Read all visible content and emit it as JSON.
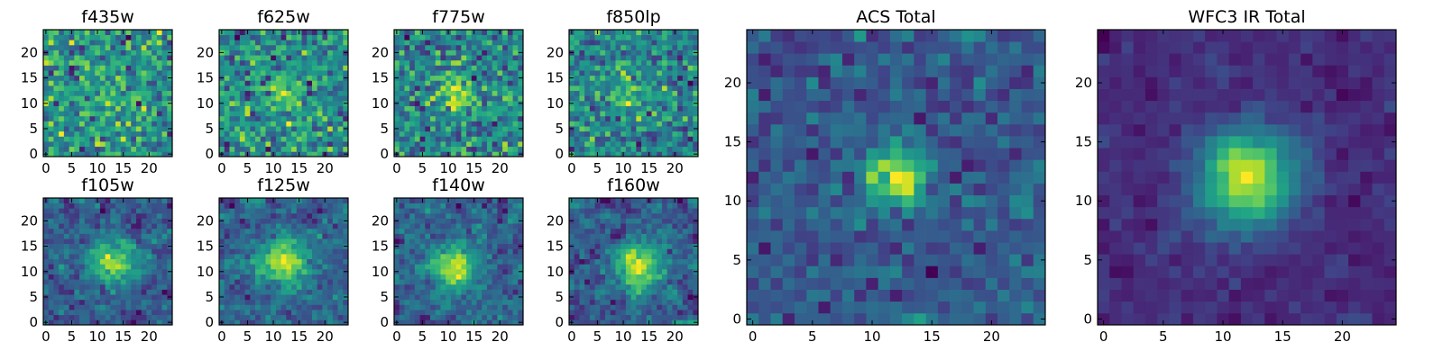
{
  "figure": {
    "colormap": "viridis",
    "panels": [
      {
        "title": "f435w",
        "seed": 11,
        "size": 25,
        "peak": [
          12,
          12
        ],
        "blob_amp": 0.35,
        "blob_sigma": 2.5,
        "noise": 1.0,
        "xticks": [
          "0",
          "5",
          "10",
          "15",
          "20"
        ],
        "yticks": [
          "0",
          "5",
          "10",
          "15",
          "20"
        ]
      },
      {
        "title": "f625w",
        "seed": 23,
        "size": 25,
        "peak": [
          12,
          12
        ],
        "blob_amp": 0.6,
        "blob_sigma": 2.5,
        "noise": 1.0,
        "xticks": [
          "0",
          "5",
          "10",
          "15",
          "20"
        ],
        "yticks": [
          "0",
          "5",
          "10",
          "15",
          "20"
        ]
      },
      {
        "title": "f775w",
        "seed": 37,
        "size": 25,
        "peak": [
          12,
          12
        ],
        "blob_amp": 0.7,
        "blob_sigma": 2.5,
        "noise": 1.0,
        "xticks": [
          "0",
          "5",
          "10",
          "15",
          "20"
        ],
        "yticks": [
          "0",
          "5",
          "10",
          "15",
          "20"
        ]
      },
      {
        "title": "f850lp",
        "seed": 41,
        "size": 25,
        "peak": [
          12,
          12
        ],
        "blob_amp": 0.6,
        "blob_sigma": 2.5,
        "noise": 1.0,
        "xticks": [
          "0",
          "5",
          "10",
          "15",
          "20"
        ],
        "yticks": [
          "0",
          "5",
          "10",
          "15",
          "20"
        ]
      },
      {
        "title": "f105w",
        "seed": 53,
        "size": 25,
        "peak": [
          13,
          12
        ],
        "blob_amp": 1.0,
        "blob_sigma": 3.0,
        "noise": 0.8,
        "smooth": true,
        "xticks": [
          "0",
          "5",
          "10",
          "15",
          "20"
        ],
        "yticks": [
          "0",
          "5",
          "10",
          "15",
          "20"
        ]
      },
      {
        "title": "f125w",
        "seed": 67,
        "size": 25,
        "peak": [
          12,
          12
        ],
        "blob_amp": 1.2,
        "blob_sigma": 3.0,
        "noise": 0.8,
        "smooth": true,
        "xticks": [
          "0",
          "5",
          "10",
          "15",
          "20"
        ],
        "yticks": [
          "0",
          "5",
          "10",
          "15",
          "20"
        ]
      },
      {
        "title": "f140w",
        "seed": 71,
        "size": 25,
        "peak": [
          11,
          11
        ],
        "blob_amp": 1.2,
        "blob_sigma": 3.0,
        "noise": 0.8,
        "smooth": true,
        "xticks": [
          "0",
          "5",
          "10",
          "15",
          "20"
        ],
        "yticks": [
          "0",
          "5",
          "10",
          "15",
          "20"
        ]
      },
      {
        "title": "f160w",
        "seed": 83,
        "size": 25,
        "peak": [
          13,
          11
        ],
        "blob_amp": 1.2,
        "blob_sigma": 3.0,
        "noise": 0.8,
        "smooth": true,
        "xticks": [
          "0",
          "5",
          "10",
          "15",
          "20"
        ],
        "yticks": [
          "0",
          "5",
          "10",
          "15",
          "20"
        ]
      },
      {
        "title": "ACS Total",
        "seed": 97,
        "size": 25,
        "peak": [
          12,
          12
        ],
        "blob_amp": 1.6,
        "blob_sigma": 1.8,
        "noise": 0.7,
        "xticks": [
          "0",
          "5",
          "10",
          "15",
          "20"
        ],
        "yticks": [
          "0",
          "5",
          "10",
          "15",
          "20"
        ]
      },
      {
        "title": "WFC3 IR Total",
        "seed": 101,
        "size": 25,
        "peak": [
          12,
          12
        ],
        "blob_amp": 2.2,
        "blob_sigma": 2.8,
        "noise": 0.5,
        "smooth": true,
        "xticks": [
          "0",
          "5",
          "10",
          "15",
          "20"
        ],
        "yticks": [
          "0",
          "5",
          "10",
          "15",
          "20"
        ]
      }
    ]
  }
}
